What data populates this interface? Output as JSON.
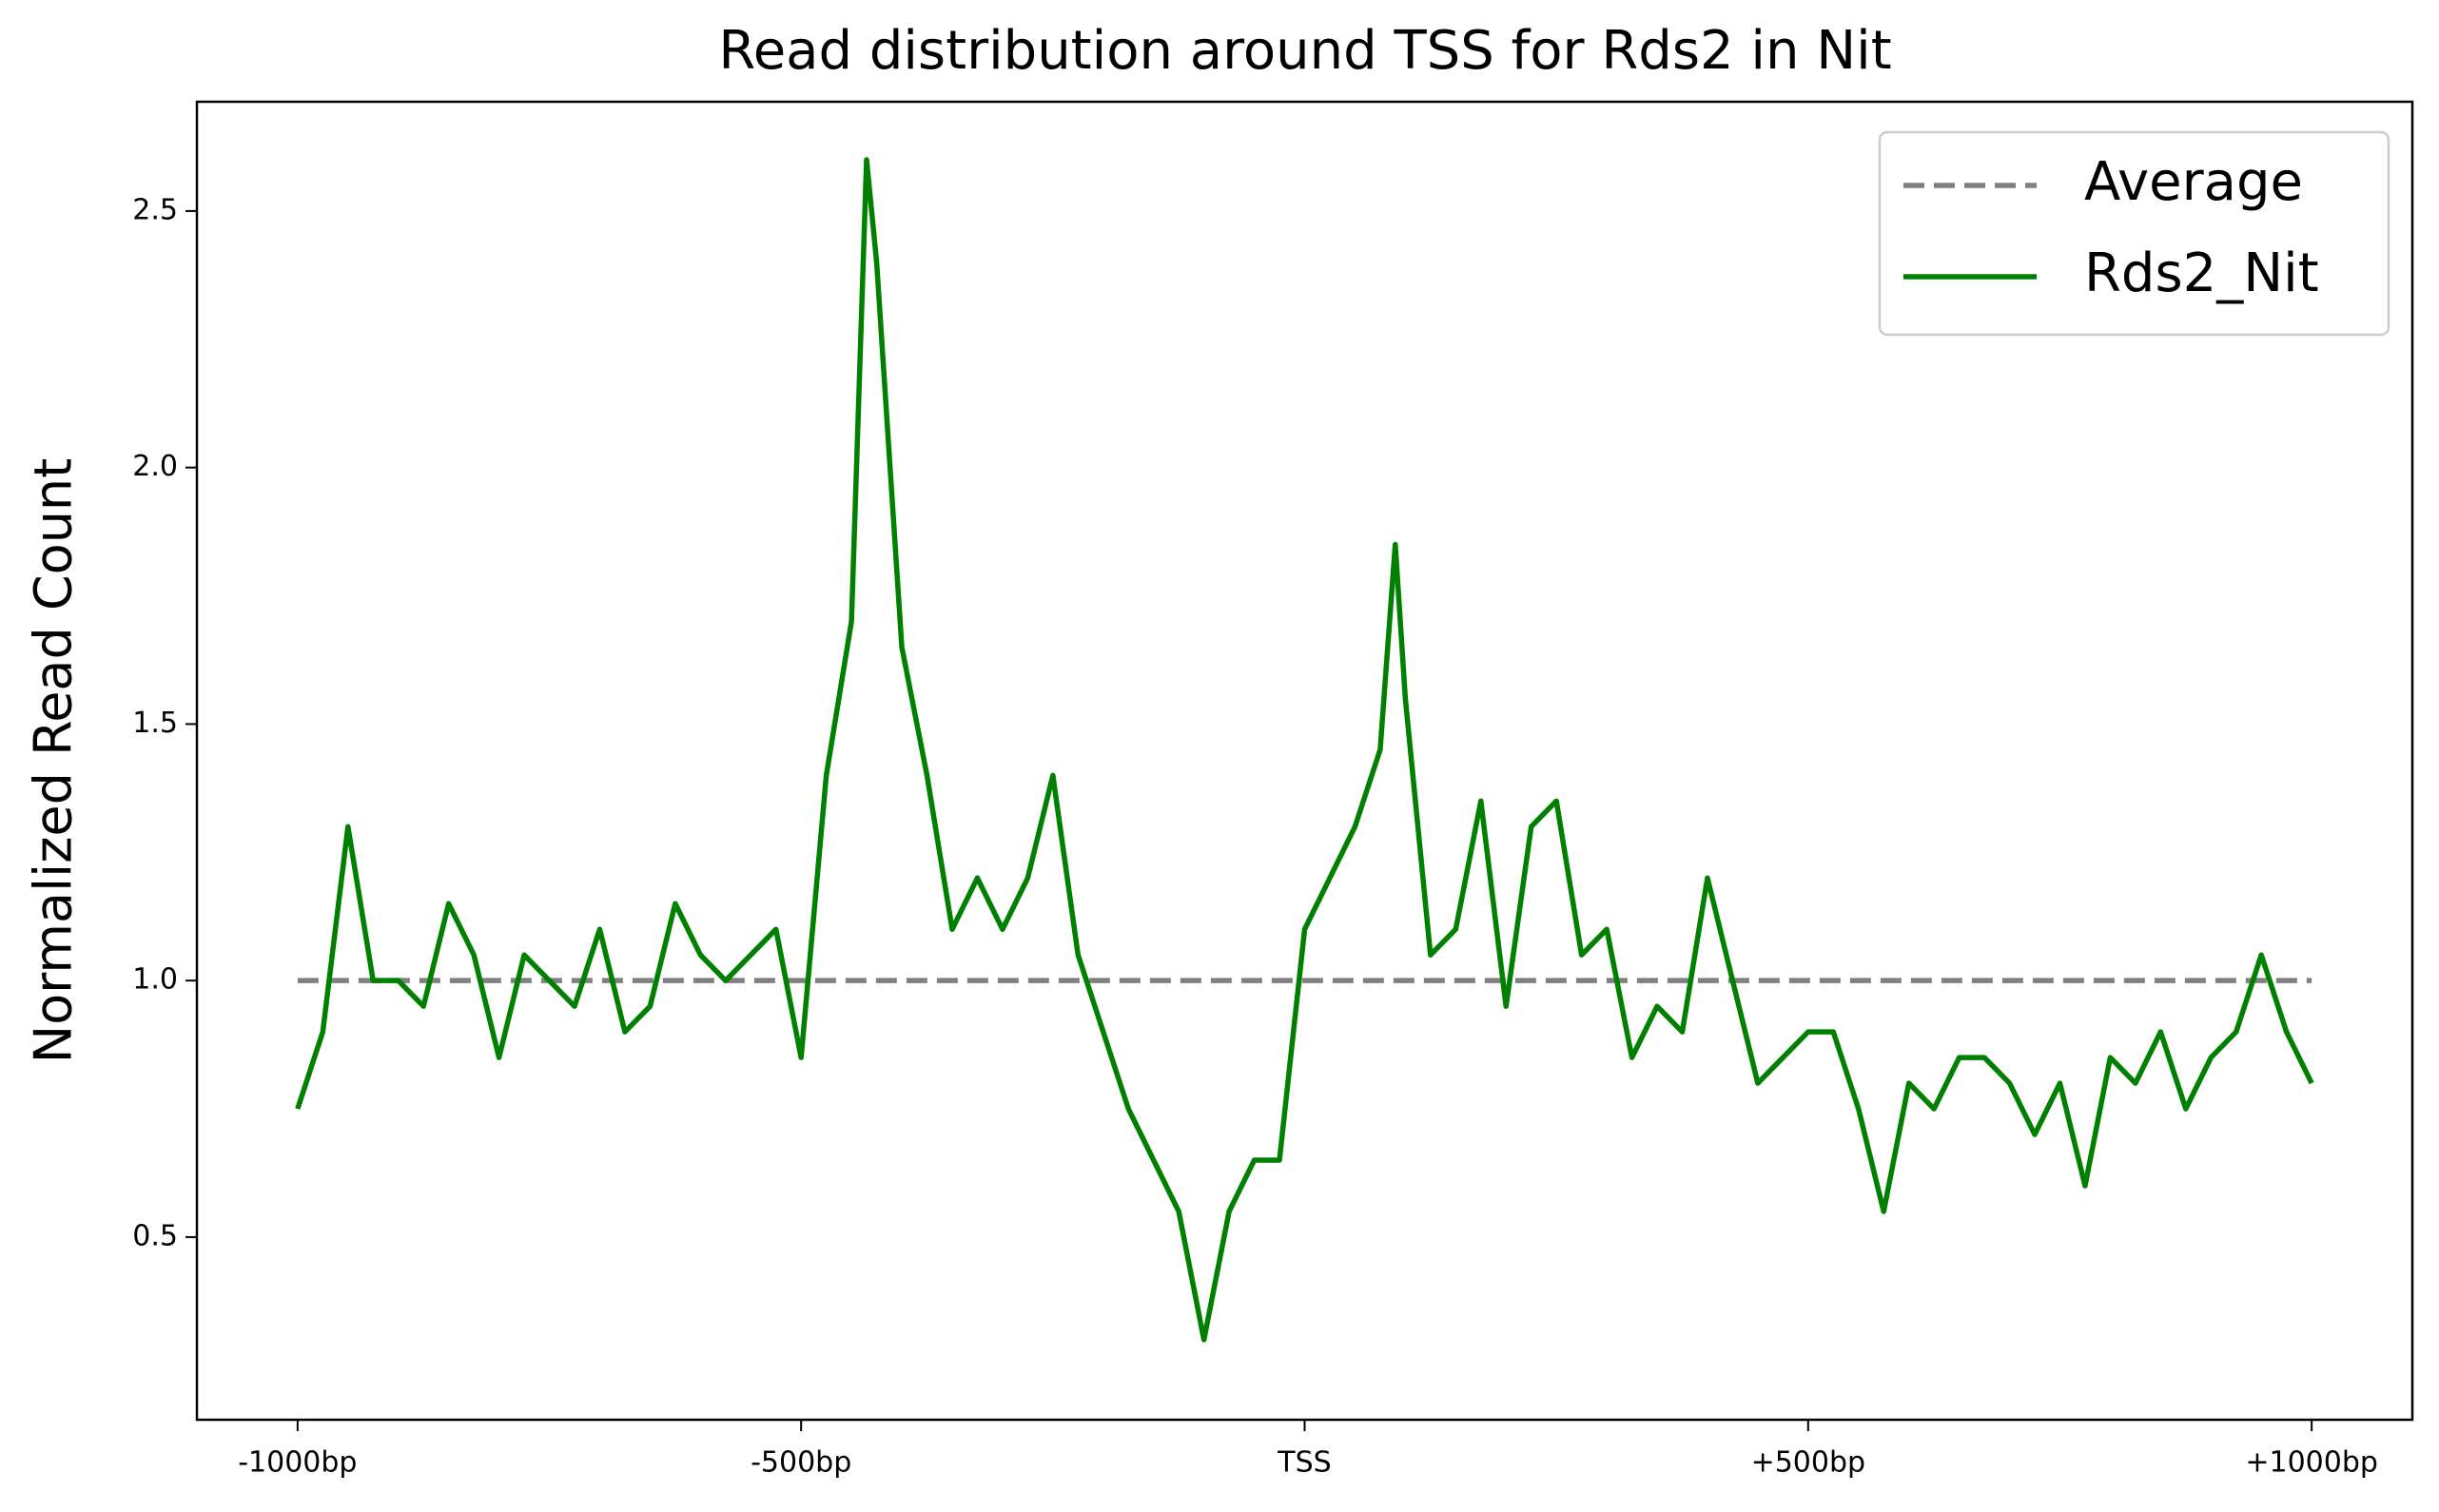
{
  "chart_data": {
    "type": "line",
    "title": "Read distribution around TSS for Rds2 in Nit",
    "ylabel": "Normalized Read Count",
    "xlim": [
      -1100,
      1100
    ],
    "ylim": [
      0.144,
      2.713
    ],
    "xticks": [
      {
        "value": -1000,
        "label": "-1000bp"
      },
      {
        "value": -500,
        "label": "-500bp"
      },
      {
        "value": 0,
        "label": "TSS"
      },
      {
        "value": 500,
        "label": "+500bp"
      },
      {
        "value": 1000,
        "label": "+1000bp"
      }
    ],
    "yticks": [
      0.5,
      {
        "value": 1,
        "label": "1.0"
      },
      1.5,
      {
        "value": 2,
        "label": "2.0"
      },
      2.5
    ],
    "grid": false,
    "legend": "upper right",
    "series": [
      {
        "name": "Average",
        "color": "#808080",
        "dashed": true,
        "x": [
          -1000,
          1000
        ],
        "values": [
          1,
          1
        ]
      },
      {
        "name": "Rds2_Nit",
        "color": "#008000",
        "dashed": false,
        "x": [
          -1000,
          -975,
          -950,
          -925,
          -900,
          -875,
          -850,
          -825,
          -800,
          -775,
          -750,
          -725,
          -700,
          -675,
          -650,
          -625,
          -600,
          -575,
          -550,
          -525,
          -500,
          -475,
          -450,
          -435,
          -425,
          -400,
          -375,
          -350,
          -325,
          -300,
          -275,
          -250,
          -225,
          -200,
          -175,
          -150,
          -125,
          -100,
          -75,
          -50,
          -25,
          0,
          25,
          50,
          75,
          90,
          100,
          125,
          150,
          175,
          200,
          225,
          250,
          275,
          300,
          325,
          350,
          375,
          400,
          425,
          450,
          475,
          500,
          525,
          550,
          575,
          600,
          625,
          650,
          675,
          700,
          725,
          750,
          775,
          800,
          825,
          850,
          875,
          900,
          925,
          950,
          975,
          1000
        ],
        "values": [
          0.75,
          0.9,
          1.3,
          1.0,
          1.0,
          0.95,
          1.15,
          1.05,
          0.85,
          1.05,
          1.0,
          0.95,
          1.1,
          0.9,
          0.95,
          1.15,
          1.05,
          1.0,
          1.05,
          1.1,
          0.85,
          1.4,
          1.7,
          2.6,
          2.4,
          1.65,
          1.4,
          1.1,
          1.2,
          1.1,
          1.2,
          1.4,
          1.05,
          0.9,
          0.75,
          0.65,
          0.55,
          0.3,
          0.55,
          0.65,
          0.65,
          1.1,
          1.2,
          1.3,
          1.45,
          1.85,
          1.55,
          1.05,
          1.1,
          1.35,
          0.95,
          1.3,
          1.35,
          1.05,
          1.1,
          0.85,
          0.95,
          0.9,
          1.2,
          1.0,
          0.8,
          0.85,
          0.9,
          0.9,
          0.75,
          0.55,
          0.8,
          0.75,
          0.85,
          0.85,
          0.8,
          0.7,
          0.8,
          0.6,
          0.85,
          0.8,
          0.9,
          0.75,
          0.85,
          0.9,
          1.05,
          0.9,
          0.8
        ]
      }
    ]
  }
}
